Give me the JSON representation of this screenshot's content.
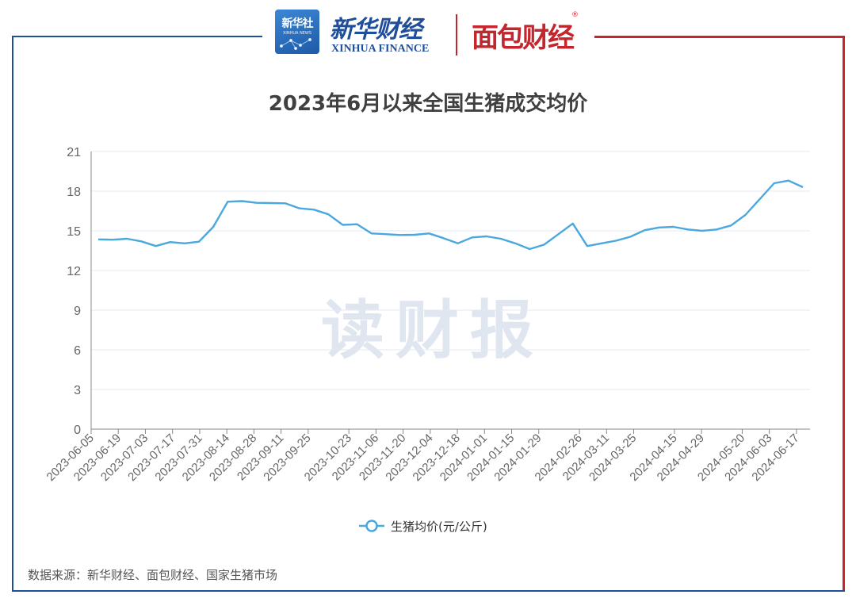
{
  "header": {
    "logo_xinhua_news_cn": "新华社",
    "logo_xinhua_news_en": "XINHUA NEWS",
    "logo_xinhua_finance_cn": "新华财经",
    "logo_xinhua_finance_en": "XINHUA FINANCE",
    "logo_mianbao": "面包财经",
    "logo_mianbao_reg": "®"
  },
  "watermark": "读财报",
  "colors": {
    "line": "#4aa8de",
    "frame_blue": "#1f4e9a",
    "frame_red": "#c4262e",
    "grid": "#e3e8f3",
    "axis": "#888888"
  },
  "chart_data": {
    "type": "line",
    "title": "2023年6月以来全国生猪成交均价",
    "xlabel": "",
    "ylabel": "",
    "ylim": [
      0,
      21
    ],
    "yticks": [
      0,
      3,
      6,
      9,
      12,
      15,
      18,
      21
    ],
    "grid": true,
    "legend_position": "bottom-center",
    "x_tick_labels": [
      "2023-06-05",
      "2023-06-19",
      "2023-07-03",
      "2023-07-17",
      "2023-07-31",
      "2023-08-14",
      "2023-08-28",
      "2023-09-11",
      "2023-09-25",
      "2023-10-23",
      "2023-11-06",
      "2023-11-20",
      "2023-12-04",
      "2023-12-18",
      "2024-01-01",
      "2024-01-15",
      "2024-01-29",
      "2024-02-26",
      "2024-03-11",
      "2024-03-25",
      "2024-04-15",
      "2024-04-29",
      "2024-05-20",
      "2024-06-03",
      "2024-06-17"
    ],
    "series": [
      {
        "name": "生猪均价(元/公斤)",
        "values": [
          14.35,
          14.33,
          14.4,
          14.2,
          13.85,
          14.15,
          14.05,
          14.18,
          15.3,
          17.2,
          17.25,
          17.12,
          17.1,
          17.08,
          16.7,
          16.6,
          16.25,
          15.45,
          15.5,
          14.8,
          14.75,
          14.68,
          14.7,
          14.8,
          14.45,
          14.05,
          14.5,
          14.58,
          14.4,
          14.05,
          13.62,
          13.95,
          14.75,
          15.55,
          13.85,
          14.05,
          14.25,
          14.55,
          15.05,
          15.25,
          15.3,
          15.1,
          15.0,
          15.1,
          15.4,
          16.2,
          17.4,
          18.6,
          18.8,
          18.3
        ]
      }
    ]
  },
  "footer": {
    "source": "数据来源：新华财经、面包财经、国家生猪市场"
  }
}
